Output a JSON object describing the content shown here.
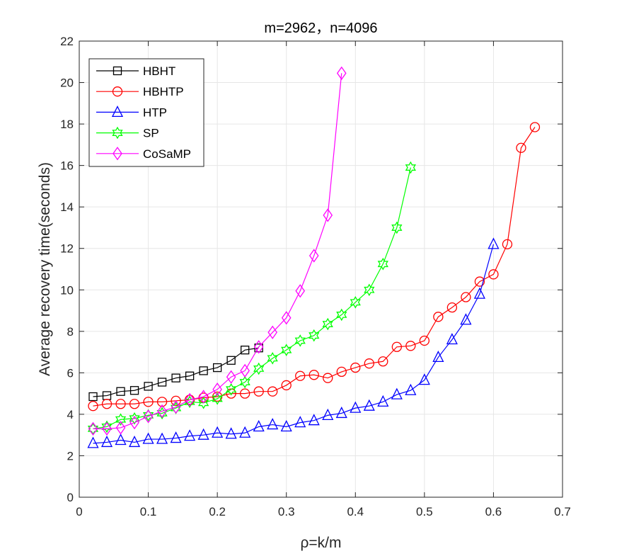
{
  "chart_data": {
    "type": "line",
    "title": "m=2962，n=4096",
    "xlabel": "ρ=k/m",
    "ylabel": "Average recovery time(seconds)",
    "xlim": [
      0,
      0.7
    ],
    "ylim": [
      0,
      22
    ],
    "xticks": [
      0,
      0.1,
      0.2,
      0.3,
      0.4,
      0.5,
      0.6,
      0.7
    ],
    "xtick_labels": [
      "0",
      "0.1",
      "0.2",
      "0.3",
      "0.4",
      "0.5",
      "0.6",
      "0.7"
    ],
    "yticks": [
      0,
      2,
      4,
      6,
      8,
      10,
      12,
      14,
      16,
      18,
      20,
      22
    ],
    "ytick_labels": [
      "0",
      "2",
      "4",
      "6",
      "8",
      "10",
      "12",
      "14",
      "16",
      "18",
      "20",
      "22"
    ],
    "grid": true,
    "legend_position": "top-left",
    "series": [
      {
        "name": "HBHT",
        "color": "#000000",
        "marker": "square",
        "x": [
          0.02,
          0.04,
          0.06,
          0.08,
          0.1,
          0.12,
          0.14,
          0.16,
          0.18,
          0.2,
          0.22,
          0.24,
          0.26
        ],
        "y": [
          4.85,
          4.9,
          5.1,
          5.15,
          5.35,
          5.55,
          5.75,
          5.85,
          6.1,
          6.25,
          6.6,
          7.1,
          7.2
        ]
      },
      {
        "name": "HBHTP",
        "color": "#ff0000",
        "marker": "circle",
        "x": [
          0.02,
          0.04,
          0.06,
          0.08,
          0.1,
          0.12,
          0.14,
          0.16,
          0.18,
          0.2,
          0.22,
          0.24,
          0.26,
          0.28,
          0.3,
          0.32,
          0.34,
          0.36,
          0.38,
          0.4,
          0.42,
          0.44,
          0.46,
          0.48,
          0.5,
          0.52,
          0.54,
          0.56,
          0.58,
          0.6,
          0.62,
          0.64,
          0.66
        ],
        "y": [
          4.4,
          4.5,
          4.5,
          4.5,
          4.6,
          4.6,
          4.65,
          4.7,
          4.8,
          4.85,
          5.0,
          5.0,
          5.1,
          5.1,
          5.4,
          5.85,
          5.9,
          5.75,
          6.05,
          6.25,
          6.45,
          6.55,
          7.25,
          7.3,
          7.55,
          8.7,
          9.15,
          9.65,
          10.4,
          10.75,
          12.2,
          16.85,
          17.85
        ]
      },
      {
        "name": "HTP",
        "color": "#0000ff",
        "marker": "triangle",
        "x": [
          0.02,
          0.04,
          0.06,
          0.08,
          0.1,
          0.12,
          0.14,
          0.16,
          0.18,
          0.2,
          0.22,
          0.24,
          0.26,
          0.28,
          0.3,
          0.32,
          0.34,
          0.36,
          0.38,
          0.4,
          0.42,
          0.44,
          0.46,
          0.48,
          0.5,
          0.52,
          0.54,
          0.56,
          0.58,
          0.6
        ],
        "y": [
          2.6,
          2.65,
          2.75,
          2.65,
          2.8,
          2.8,
          2.85,
          2.95,
          3.0,
          3.1,
          3.05,
          3.1,
          3.4,
          3.5,
          3.4,
          3.6,
          3.7,
          3.95,
          4.05,
          4.3,
          4.4,
          4.6,
          4.95,
          5.15,
          5.65,
          6.75,
          7.6,
          8.55,
          9.8,
          12.2
        ]
      },
      {
        "name": "SP",
        "color": "#00ff00",
        "marker": "hexagram",
        "x": [
          0.02,
          0.04,
          0.06,
          0.08,
          0.1,
          0.12,
          0.14,
          0.16,
          0.18,
          0.2,
          0.22,
          0.24,
          0.26,
          0.28,
          0.3,
          0.32,
          0.34,
          0.36,
          0.38,
          0.4,
          0.42,
          0.44,
          0.46,
          0.48
        ],
        "y": [
          3.3,
          3.4,
          3.75,
          3.8,
          3.95,
          4.05,
          4.3,
          4.6,
          4.55,
          4.75,
          5.2,
          5.55,
          6.2,
          6.7,
          7.1,
          7.55,
          7.8,
          8.35,
          8.8,
          9.4,
          10.0,
          11.25,
          13.0,
          15.9
        ]
      },
      {
        "name": "CoSaMP",
        "color": "#ff00ff",
        "marker": "diamond",
        "x": [
          0.02,
          0.04,
          0.06,
          0.08,
          0.1,
          0.12,
          0.14,
          0.16,
          0.18,
          0.2,
          0.22,
          0.24,
          0.26,
          0.28,
          0.3,
          0.32,
          0.34,
          0.36,
          0.38
        ],
        "y": [
          3.3,
          3.3,
          3.35,
          3.6,
          3.9,
          4.15,
          4.35,
          4.7,
          4.85,
          5.2,
          5.8,
          6.1,
          7.25,
          7.95,
          8.65,
          9.95,
          11.65,
          13.6,
          20.45
        ]
      }
    ]
  }
}
